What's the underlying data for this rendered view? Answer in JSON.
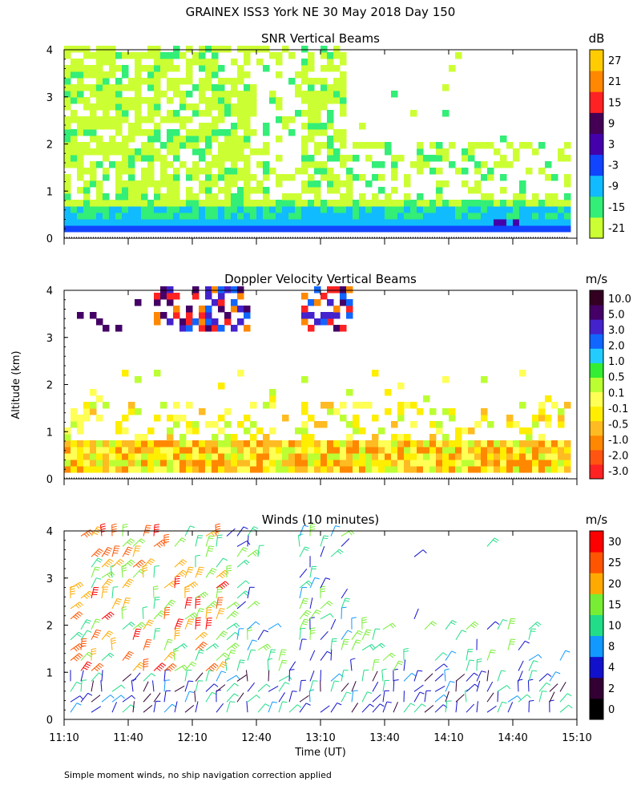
{
  "figure": {
    "title": "GRAINEX ISS3 York NE  30 May 2018 Day 150",
    "ylabel": "Altitude (km)",
    "xlabel": "Time (UT)",
    "footnote": "Simple moment winds, no ship navigation correction applied"
  },
  "chart_data": [
    {
      "type": "heatmap",
      "title": "SNR Vertical Beams",
      "units": "dB",
      "x": [
        "11:10",
        "11:40",
        "12:10",
        "12:40",
        "13:10",
        "13:40",
        "14:10",
        "14:40",
        "15:10"
      ],
      "xlim": [
        "11:10",
        "15:10"
      ],
      "ylim": [
        0,
        4
      ],
      "yticks": [
        0,
        1,
        2,
        3,
        4
      ],
      "colorbar": {
        "labels": [
          "-21",
          "-15",
          "-9",
          "-3",
          "3",
          "9",
          "15",
          "21",
          "27"
        ],
        "colors": [
          "#ccff33",
          "#33ee77",
          "#11bbff",
          "#1144ff",
          "#4400aa",
          "#440055",
          "#ff2222",
          "#ff8800",
          "#ffcc00"
        ]
      }
    },
    {
      "type": "heatmap",
      "title": "Doppler Velocity Vertical Beams",
      "units": "m/s",
      "x": [
        "11:10",
        "11:40",
        "12:10",
        "12:40",
        "13:10",
        "13:40",
        "14:10",
        "14:40",
        "15:10"
      ],
      "xlim": [
        "11:10",
        "15:10"
      ],
      "ylim": [
        0,
        4
      ],
      "yticks": [
        0,
        1,
        2,
        3,
        4
      ],
      "colorbar": {
        "labels": [
          "-3.0",
          "-2.0",
          "-1.0",
          "-0.5",
          "-0.1",
          "0.1",
          "0.5",
          "1.0",
          "2.0",
          "3.0",
          "5.0",
          "10.0"
        ],
        "colors": [
          "#ff2222",
          "#ff5511",
          "#ff8800",
          "#ffbb22",
          "#ffee00",
          "#ffff55",
          "#bbff33",
          "#33ee33",
          "#22ccff",
          "#1166ff",
          "#4422cc",
          "#440066",
          "#330022"
        ]
      }
    },
    {
      "type": "scatter",
      "title": "Winds (10 minutes)",
      "units": "m/s",
      "x": [
        "11:10",
        "11:40",
        "12:10",
        "12:40",
        "13:10",
        "13:40",
        "14:10",
        "14:40",
        "15:10"
      ],
      "xlim": [
        "11:10",
        "15:10"
      ],
      "ylim": [
        0,
        4
      ],
      "yticks": [
        0,
        1,
        2,
        3,
        4
      ],
      "colorbar": {
        "labels": [
          "0",
          "2",
          "4",
          "8",
          "10",
          "15",
          "20",
          "25",
          "30"
        ],
        "colors": [
          "#000000",
          "#330033",
          "#1111cc",
          "#1199ff",
          "#22dd88",
          "#77ee33",
          "#ffaa00",
          "#ff5500",
          "#ff0000"
        ]
      }
    }
  ]
}
